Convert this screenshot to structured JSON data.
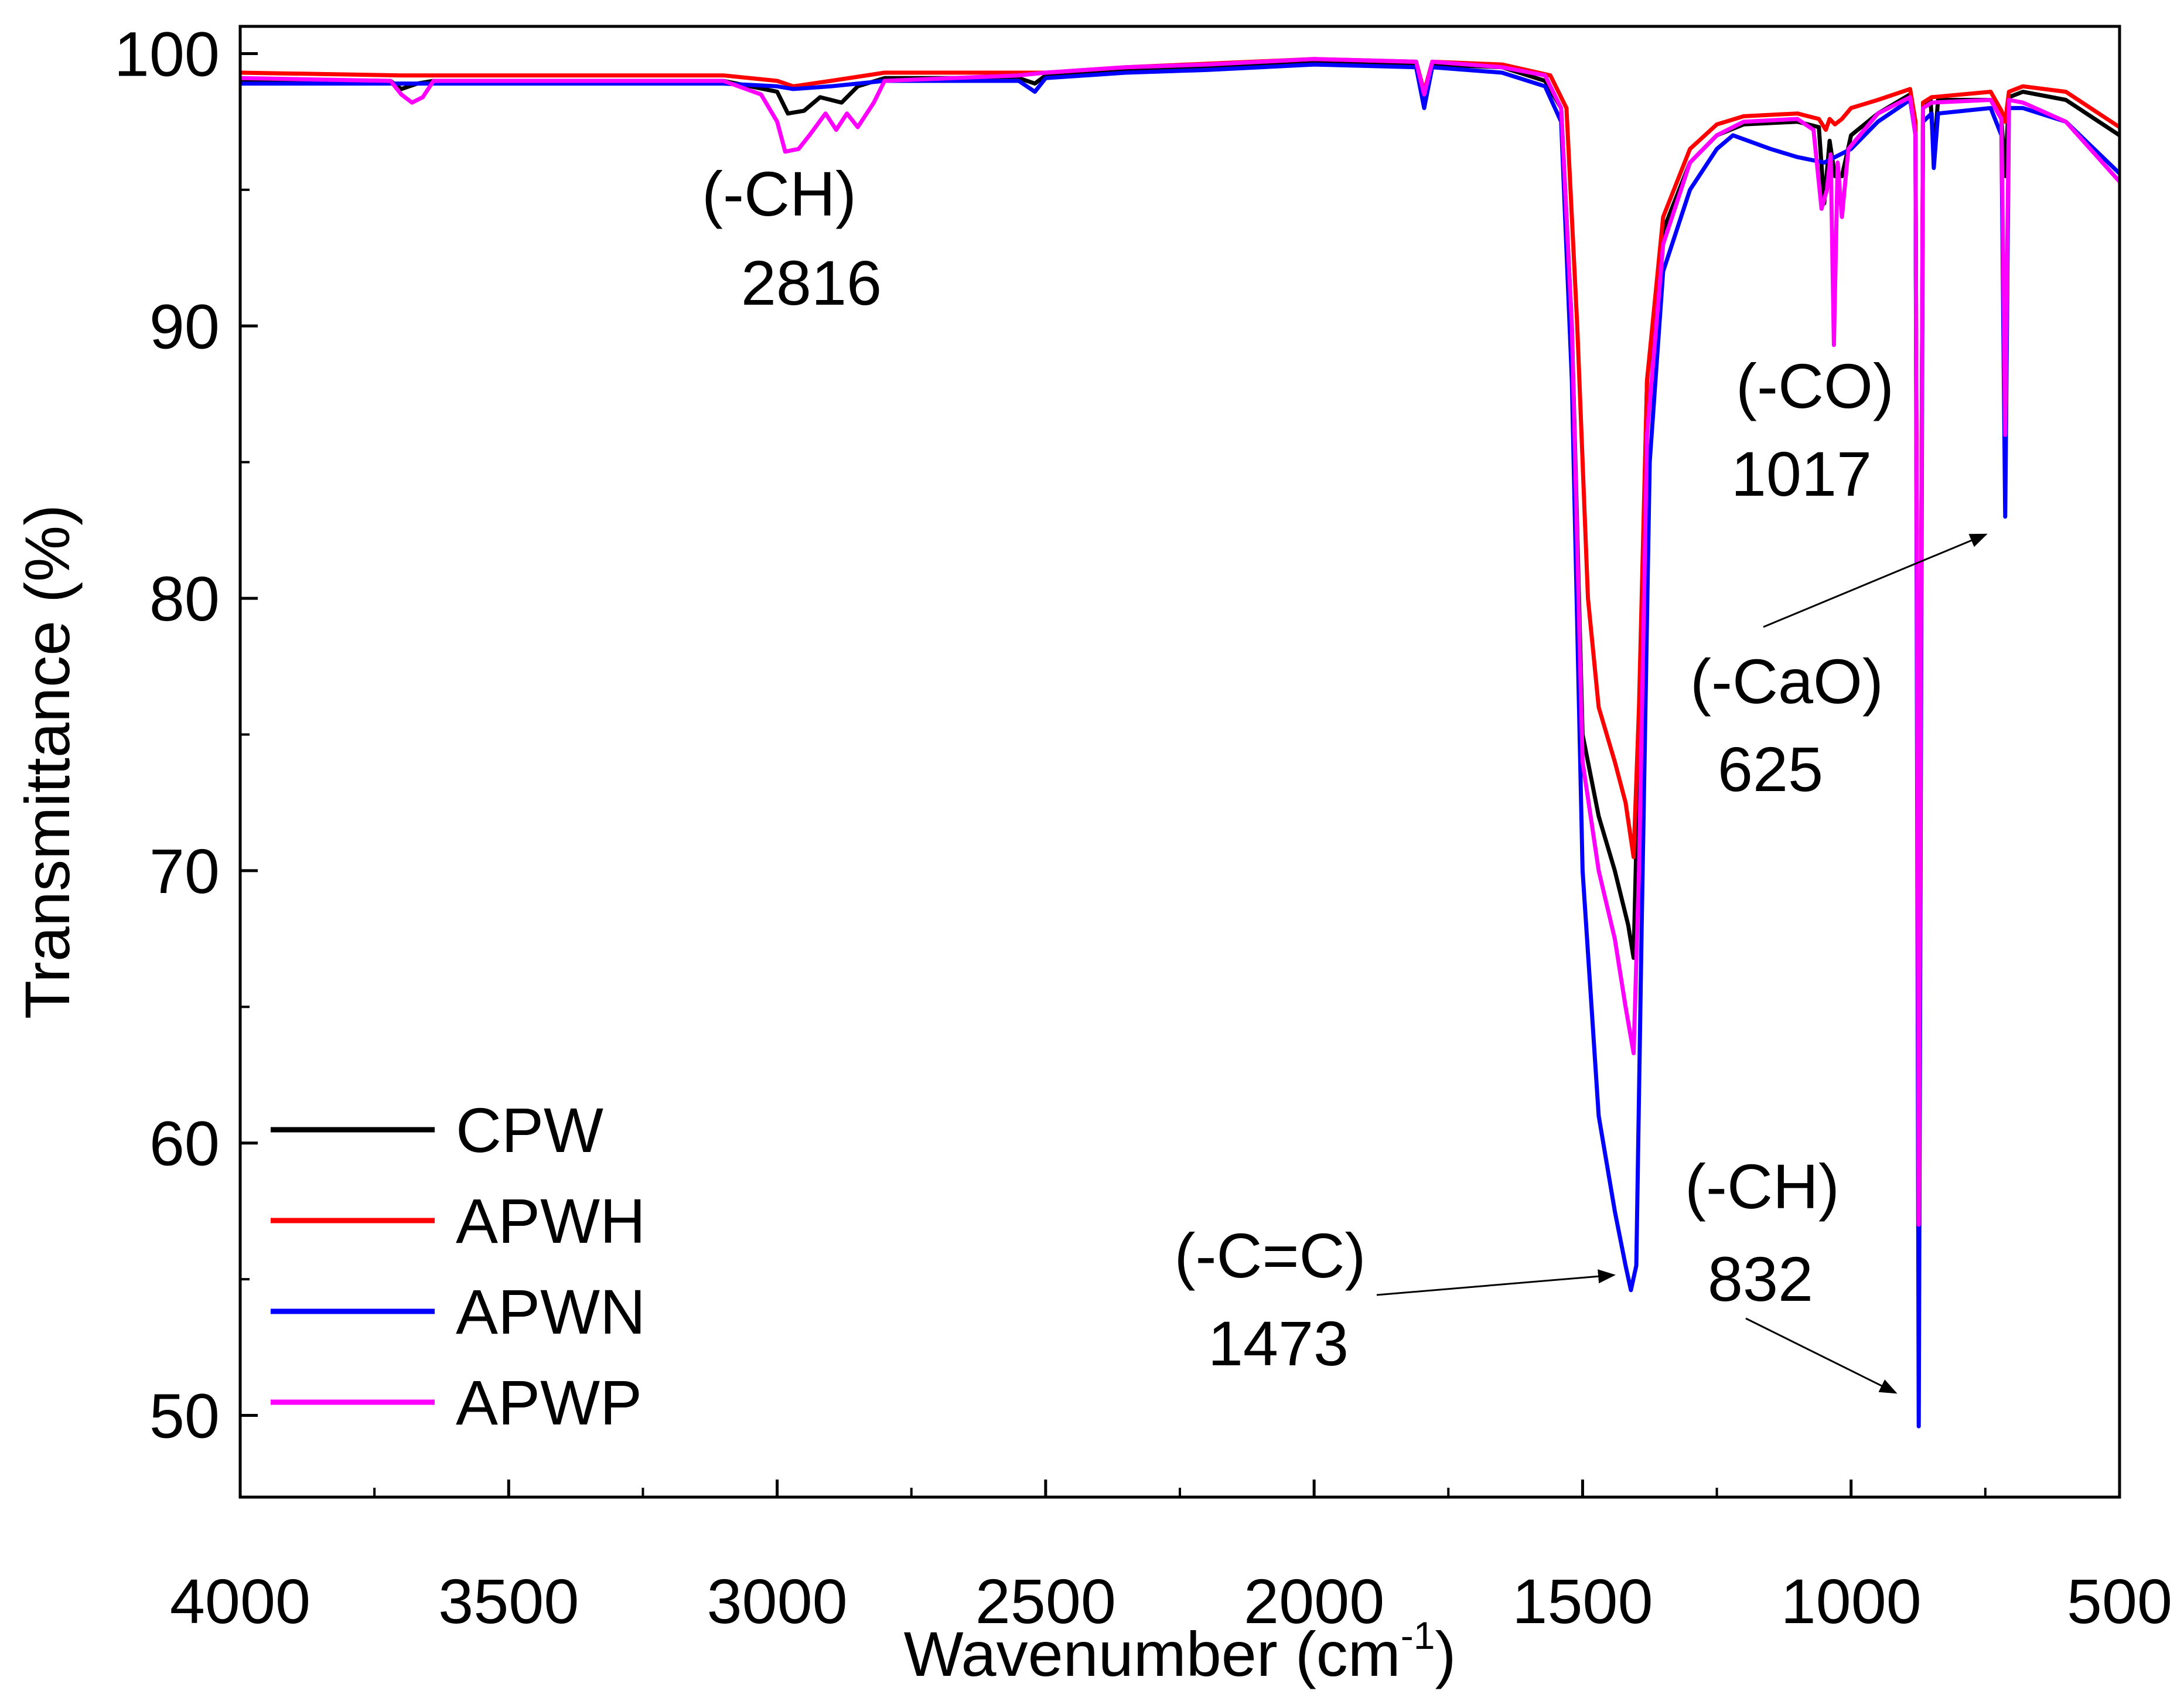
{
  "chart_data": {
    "type": "line",
    "xlabel": "Wavenumber (cm",
    "xlabel_sup": "-1",
    "xlabel_close": ")",
    "ylabel": "Transmittance (%)",
    "xlim": [
      4000,
      500
    ],
    "ylim": [
      47,
      101
    ],
    "x_major_ticks": [
      4000,
      3500,
      3000,
      2500,
      2000,
      1500,
      1000,
      500
    ],
    "x_minor_ticks": [
      3750,
      3250,
      2750,
      2250,
      1750,
      1250,
      750
    ],
    "y_major_ticks": [
      50,
      60,
      70,
      80,
      90,
      100
    ],
    "y_minor_ticks": [
      55,
      65,
      75,
      85,
      95
    ],
    "x_tick_labels": [
      "4000",
      "3500",
      "3000",
      "2500",
      "2000",
      "1500",
      "1000",
      "500"
    ],
    "y_tick_labels": [
      "50",
      "60",
      "70",
      "80",
      "90",
      "100"
    ],
    "legend_position": "bottom-left",
    "series": [
      {
        "name": "CPW",
        "color": "#000000",
        "points": [
          [
            4000,
            99.0
          ],
          [
            3720,
            99.0
          ],
          [
            3700,
            98.7
          ],
          [
            3670,
            98.9
          ],
          [
            3640,
            99.0
          ],
          [
            3100,
            99.0
          ],
          [
            3000,
            98.6
          ],
          [
            2980,
            97.8
          ],
          [
            2950,
            97.9
          ],
          [
            2920,
            98.4
          ],
          [
            2880,
            98.2
          ],
          [
            2850,
            98.8
          ],
          [
            2800,
            99.1
          ],
          [
            2550,
            99.1
          ],
          [
            2520,
            98.9
          ],
          [
            2500,
            99.2
          ],
          [
            2350,
            99.4
          ],
          [
            2200,
            99.5
          ],
          [
            2000,
            99.7
          ],
          [
            1810,
            99.6
          ],
          [
            1795,
            98.2
          ],
          [
            1780,
            99.6
          ],
          [
            1650,
            99.5
          ],
          [
            1570,
            99.0
          ],
          [
            1540,
            98.0
          ],
          [
            1520,
            90.0
          ],
          [
            1500,
            75.0
          ],
          [
            1470,
            72.0
          ],
          [
            1440,
            70.0
          ],
          [
            1415,
            68.0
          ],
          [
            1405,
            66.8
          ],
          [
            1395,
            75.0
          ],
          [
            1380,
            88.0
          ],
          [
            1350,
            93.5
          ],
          [
            1300,
            96.0
          ],
          [
            1250,
            97.0
          ],
          [
            1200,
            97.4
          ],
          [
            1100,
            97.5
          ],
          [
            1060,
            97.3
          ],
          [
            1050,
            94.5
          ],
          [
            1040,
            96.8
          ],
          [
            1030,
            95.5
          ],
          [
            1017,
            95.5
          ],
          [
            1000,
            97.0
          ],
          [
            950,
            97.8
          ],
          [
            890,
            98.5
          ],
          [
            880,
            97.0
          ],
          [
            874,
            57.0
          ],
          [
            866,
            98.0
          ],
          [
            852,
            98.3
          ],
          [
            846,
            96.3
          ],
          [
            838,
            98.3
          ],
          [
            740,
            98.3
          ],
          [
            720,
            97.6
          ],
          [
            713,
            95.5
          ],
          [
            706,
            98.4
          ],
          [
            680,
            98.6
          ],
          [
            600,
            98.3
          ],
          [
            500,
            97.0
          ]
        ]
      },
      {
        "name": "APWH",
        "color": "#ff0000",
        "points": [
          [
            4000,
            99.3
          ],
          [
            3700,
            99.2
          ],
          [
            3100,
            99.2
          ],
          [
            3000,
            99.0
          ],
          [
            2970,
            98.8
          ],
          [
            2900,
            99.0
          ],
          [
            2800,
            99.3
          ],
          [
            2500,
            99.3
          ],
          [
            2350,
            99.5
          ],
          [
            2000,
            99.8
          ],
          [
            1810,
            99.7
          ],
          [
            1795,
            98.6
          ],
          [
            1780,
            99.7
          ],
          [
            1650,
            99.6
          ],
          [
            1560,
            99.2
          ],
          [
            1530,
            98.0
          ],
          [
            1510,
            90.0
          ],
          [
            1490,
            80.0
          ],
          [
            1470,
            76.0
          ],
          [
            1440,
            74.0
          ],
          [
            1420,
            72.5
          ],
          [
            1405,
            70.5
          ],
          [
            1395,
            76.0
          ],
          [
            1380,
            88.0
          ],
          [
            1350,
            94.0
          ],
          [
            1300,
            96.5
          ],
          [
            1250,
            97.4
          ],
          [
            1200,
            97.7
          ],
          [
            1100,
            97.8
          ],
          [
            1060,
            97.6
          ],
          [
            1047,
            97.2
          ],
          [
            1040,
            97.6
          ],
          [
            1030,
            97.4
          ],
          [
            1017,
            97.6
          ],
          [
            1000,
            98.0
          ],
          [
            950,
            98.3
          ],
          [
            890,
            98.7
          ],
          [
            880,
            97.5
          ],
          [
            874,
            57.5
          ],
          [
            866,
            98.2
          ],
          [
            850,
            98.4
          ],
          [
            740,
            98.6
          ],
          [
            720,
            97.9
          ],
          [
            713,
            97.5
          ],
          [
            706,
            98.6
          ],
          [
            680,
            98.8
          ],
          [
            600,
            98.6
          ],
          [
            500,
            97.3
          ]
        ]
      },
      {
        "name": "APWN",
        "color": "#0000ff",
        "points": [
          [
            4000,
            98.9
          ],
          [
            3700,
            98.9
          ],
          [
            3100,
            98.9
          ],
          [
            3000,
            98.8
          ],
          [
            2970,
            98.7
          ],
          [
            2900,
            98.8
          ],
          [
            2800,
            99.0
          ],
          [
            2550,
            99.0
          ],
          [
            2520,
            98.6
          ],
          [
            2500,
            99.1
          ],
          [
            2350,
            99.3
          ],
          [
            2200,
            99.4
          ],
          [
            2000,
            99.6
          ],
          [
            1810,
            99.5
          ],
          [
            1795,
            98.0
          ],
          [
            1780,
            99.5
          ],
          [
            1650,
            99.3
          ],
          [
            1570,
            98.8
          ],
          [
            1540,
            97.5
          ],
          [
            1520,
            88.0
          ],
          [
            1500,
            70.0
          ],
          [
            1470,
            61.0
          ],
          [
            1440,
            57.5
          ],
          [
            1420,
            55.5
          ],
          [
            1410,
            54.6
          ],
          [
            1400,
            55.5
          ],
          [
            1390,
            68.0
          ],
          [
            1375,
            85.0
          ],
          [
            1350,
            92.0
          ],
          [
            1300,
            95.0
          ],
          [
            1250,
            96.5
          ],
          [
            1220,
            97.0
          ],
          [
            1150,
            96.5
          ],
          [
            1100,
            96.2
          ],
          [
            1050,
            96.0
          ],
          [
            1000,
            96.5
          ],
          [
            950,
            97.5
          ],
          [
            890,
            98.3
          ],
          [
            880,
            97.0
          ],
          [
            874,
            49.6
          ],
          [
            866,
            97.5
          ],
          [
            850,
            97.8
          ],
          [
            846,
            95.8
          ],
          [
            838,
            97.8
          ],
          [
            740,
            98.0
          ],
          [
            720,
            97.0
          ],
          [
            713,
            83.0
          ],
          [
            706,
            98.0
          ],
          [
            680,
            98.0
          ],
          [
            600,
            97.5
          ],
          [
            500,
            95.6
          ]
        ]
      },
      {
        "name": "APWP",
        "color": "#ff00ff",
        "points": [
          [
            4000,
            99.1
          ],
          [
            3720,
            99.0
          ],
          [
            3700,
            98.5
          ],
          [
            3680,
            98.2
          ],
          [
            3660,
            98.4
          ],
          [
            3640,
            99.0
          ],
          [
            3100,
            99.0
          ],
          [
            3030,
            98.5
          ],
          [
            3000,
            97.5
          ],
          [
            2985,
            96.4
          ],
          [
            2960,
            96.5
          ],
          [
            2940,
            97.0
          ],
          [
            2910,
            97.8
          ],
          [
            2890,
            97.2
          ],
          [
            2870,
            97.8
          ],
          [
            2850,
            97.3
          ],
          [
            2820,
            98.2
          ],
          [
            2800,
            99.0
          ],
          [
            2550,
            99.2
          ],
          [
            2500,
            99.3
          ],
          [
            2350,
            99.5
          ],
          [
            2200,
            99.6
          ],
          [
            2000,
            99.8
          ],
          [
            1810,
            99.7
          ],
          [
            1795,
            98.5
          ],
          [
            1780,
            99.7
          ],
          [
            1650,
            99.5
          ],
          [
            1570,
            99.2
          ],
          [
            1540,
            98.0
          ],
          [
            1520,
            90.0
          ],
          [
            1500,
            74.0
          ],
          [
            1470,
            70.0
          ],
          [
            1440,
            67.5
          ],
          [
            1420,
            65.0
          ],
          [
            1405,
            63.3
          ],
          [
            1395,
            70.0
          ],
          [
            1380,
            86.0
          ],
          [
            1350,
            93.0
          ],
          [
            1300,
            96.0
          ],
          [
            1250,
            97.0
          ],
          [
            1200,
            97.5
          ],
          [
            1100,
            97.6
          ],
          [
            1070,
            97.2
          ],
          [
            1055,
            94.3
          ],
          [
            1045,
            95.0
          ],
          [
            1038,
            96.3
          ],
          [
            1032,
            89.3
          ],
          [
            1025,
            96.0
          ],
          [
            1017,
            94.0
          ],
          [
            1005,
            96.5
          ],
          [
            950,
            97.8
          ],
          [
            890,
            98.4
          ],
          [
            880,
            97.0
          ],
          [
            874,
            57.0
          ],
          [
            866,
            98.0
          ],
          [
            850,
            98.2
          ],
          [
            740,
            98.3
          ],
          [
            720,
            97.6
          ],
          [
            713,
            86.0
          ],
          [
            706,
            98.3
          ],
          [
            680,
            98.2
          ],
          [
            600,
            97.5
          ],
          [
            500,
            95.3
          ]
        ]
      }
    ],
    "annotations": [
      {
        "group": "-CH",
        "label": "(-CH)",
        "value": "2816"
      },
      {
        "group": "-CO",
        "label": "(-CO)",
        "value": "1017"
      },
      {
        "group": "-CaO",
        "label": "(-CaO)",
        "value": "625"
      },
      {
        "group": "-CH-832",
        "label": "(-CH)",
        "value": "832"
      },
      {
        "group": "-C=C",
        "label": "(-C=C)",
        "value": "1473"
      }
    ]
  }
}
